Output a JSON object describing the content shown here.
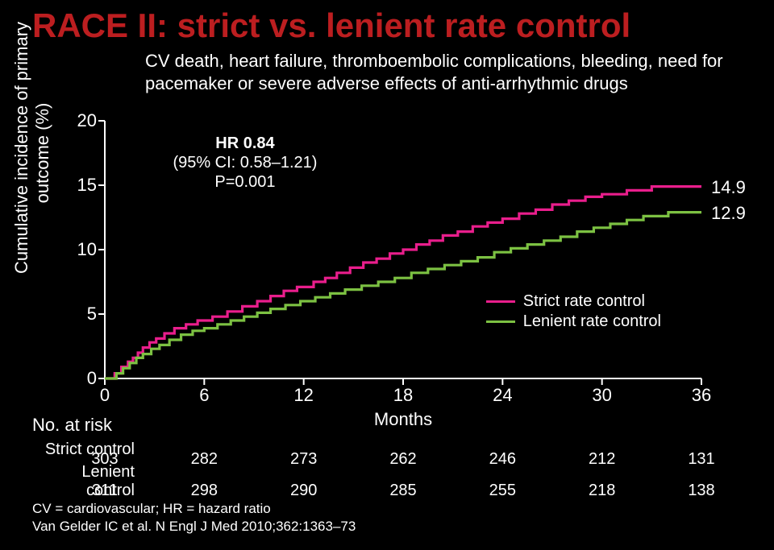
{
  "title": "RACE II: strict vs. lenient rate control",
  "subtitle": "CV death, heart failure, thromboembolic complications, bleeding, need for pacemaker or severe adverse effects of anti-arrhythmic drugs",
  "ylabel_line1": "Cumulative incidence of primary",
  "ylabel_line2": "outcome (%)",
  "xlabel": "Months",
  "chart": {
    "type": "line-step",
    "background": "#000000",
    "axis_color": "#ffffff",
    "tick_len": 8,
    "xlim": [
      0,
      36
    ],
    "ylim": [
      0,
      20
    ],
    "yticks": [
      0,
      5,
      10,
      15,
      20
    ],
    "xticks": [
      0,
      6,
      12,
      18,
      24,
      30,
      36
    ],
    "line_width": 3.2,
    "series": [
      {
        "name": "Strict rate control",
        "color": "#e91e8c",
        "end_value": "14.9",
        "points": [
          [
            0,
            0
          ],
          [
            0.6,
            0.4
          ],
          [
            1.0,
            0.9
          ],
          [
            1.4,
            1.3
          ],
          [
            1.7,
            1.6
          ],
          [
            2.0,
            2.0
          ],
          [
            2.3,
            2.4
          ],
          [
            2.7,
            2.8
          ],
          [
            3.1,
            3.1
          ],
          [
            3.6,
            3.5
          ],
          [
            4.2,
            3.9
          ],
          [
            4.9,
            4.2
          ],
          [
            5.6,
            4.5
          ],
          [
            6.0,
            4.5
          ],
          [
            6.5,
            4.8
          ],
          [
            7.4,
            5.2
          ],
          [
            8.3,
            5.6
          ],
          [
            9.2,
            6.0
          ],
          [
            10.0,
            6.4
          ],
          [
            10.8,
            6.8
          ],
          [
            11.6,
            7.1
          ],
          [
            12.0,
            7.1
          ],
          [
            12.6,
            7.5
          ],
          [
            13.3,
            7.8
          ],
          [
            14.0,
            8.2
          ],
          [
            14.8,
            8.6
          ],
          [
            15.6,
            9.0
          ],
          [
            16.4,
            9.3
          ],
          [
            17.2,
            9.7
          ],
          [
            18.0,
            10.0
          ],
          [
            18.8,
            10.4
          ],
          [
            19.6,
            10.7
          ],
          [
            20.4,
            11.1
          ],
          [
            21.3,
            11.4
          ],
          [
            22.2,
            11.8
          ],
          [
            23.1,
            12.1
          ],
          [
            24.0,
            12.4
          ],
          [
            25.0,
            12.8
          ],
          [
            26.0,
            13.1
          ],
          [
            27.0,
            13.5
          ],
          [
            28.0,
            13.8
          ],
          [
            29.0,
            14.1
          ],
          [
            30.0,
            14.3
          ],
          [
            31.5,
            14.6
          ],
          [
            33.0,
            14.9
          ],
          [
            36.0,
            14.9
          ]
        ]
      },
      {
        "name": "Lenient rate control",
        "color": "#7cc142",
        "end_value": "12.9",
        "points": [
          [
            0,
            0
          ],
          [
            0.7,
            0.4
          ],
          [
            1.1,
            0.8
          ],
          [
            1.5,
            1.2
          ],
          [
            1.9,
            1.6
          ],
          [
            2.3,
            1.9
          ],
          [
            2.8,
            2.3
          ],
          [
            3.3,
            2.6
          ],
          [
            3.9,
            3.0
          ],
          [
            4.6,
            3.4
          ],
          [
            5.3,
            3.7
          ],
          [
            6.0,
            3.9
          ],
          [
            6.8,
            4.2
          ],
          [
            7.6,
            4.5
          ],
          [
            8.4,
            4.8
          ],
          [
            9.2,
            5.1
          ],
          [
            10.0,
            5.4
          ],
          [
            10.9,
            5.7
          ],
          [
            11.8,
            6.0
          ],
          [
            12.7,
            6.3
          ],
          [
            13.6,
            6.6
          ],
          [
            14.5,
            6.9
          ],
          [
            15.5,
            7.2
          ],
          [
            16.5,
            7.5
          ],
          [
            17.5,
            7.8
          ],
          [
            18.5,
            8.2
          ],
          [
            19.5,
            8.5
          ],
          [
            20.5,
            8.8
          ],
          [
            21.5,
            9.1
          ],
          [
            22.5,
            9.4
          ],
          [
            23.5,
            9.8
          ],
          [
            24.5,
            10.1
          ],
          [
            25.5,
            10.4
          ],
          [
            26.5,
            10.7
          ],
          [
            27.5,
            11.0
          ],
          [
            28.5,
            11.4
          ],
          [
            29.5,
            11.7
          ],
          [
            30.5,
            12.0
          ],
          [
            31.5,
            12.3
          ],
          [
            32.5,
            12.6
          ],
          [
            34.0,
            12.9
          ],
          [
            36.0,
            12.9
          ]
        ]
      }
    ],
    "hr_text": {
      "line1": "HR 0.84",
      "line2": "(95% CI: 0.58–1.21)",
      "line3": "P=0.001",
      "x": 8,
      "y_top": 19
    },
    "legend": {
      "x": 23,
      "y_top": 6.8,
      "items": [
        "Strict rate control",
        "Lenient rate control"
      ]
    }
  },
  "atrisk": {
    "header": "No. at risk",
    "rows": [
      {
        "label": "Strict control",
        "values": [
          303,
          282,
          273,
          262,
          246,
          212,
          131
        ]
      },
      {
        "label": "Lenient control",
        "values": [
          311,
          298,
          290,
          285,
          255,
          218,
          138
        ]
      }
    ]
  },
  "footnote_line1": "CV = cardiovascular; HR = hazard ratio",
  "footnote_line2": "Van Gelder IC et al. N Engl J Med 2010;362:1363–73",
  "colors": {
    "title": "#bc1e20",
    "text": "#ffffff",
    "bg": "#000000"
  }
}
